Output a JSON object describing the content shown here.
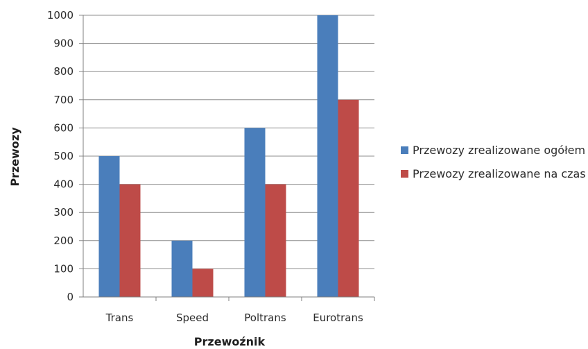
{
  "chart_data": {
    "type": "bar",
    "categories": [
      "Trans",
      "Speed",
      "Poltrans",
      "Eurotrans"
    ],
    "series": [
      {
        "name": "Przewozy zrealizowane ogółem",
        "values": [
          500,
          200,
          600,
          1000
        ],
        "color": "#4a7ebb"
      },
      {
        "name": "Przewozy zrealizowane na czas",
        "values": [
          400,
          100,
          400,
          700
        ],
        "color": "#be4b48"
      }
    ],
    "title": "",
    "xlabel": "Przewoźnik",
    "ylabel": "Przewozy",
    "ylim": [
      0,
      1000
    ],
    "yticks": [
      0,
      100,
      200,
      300,
      400,
      500,
      600,
      700,
      800,
      900,
      1000
    ],
    "grid": true,
    "legend": "right"
  }
}
